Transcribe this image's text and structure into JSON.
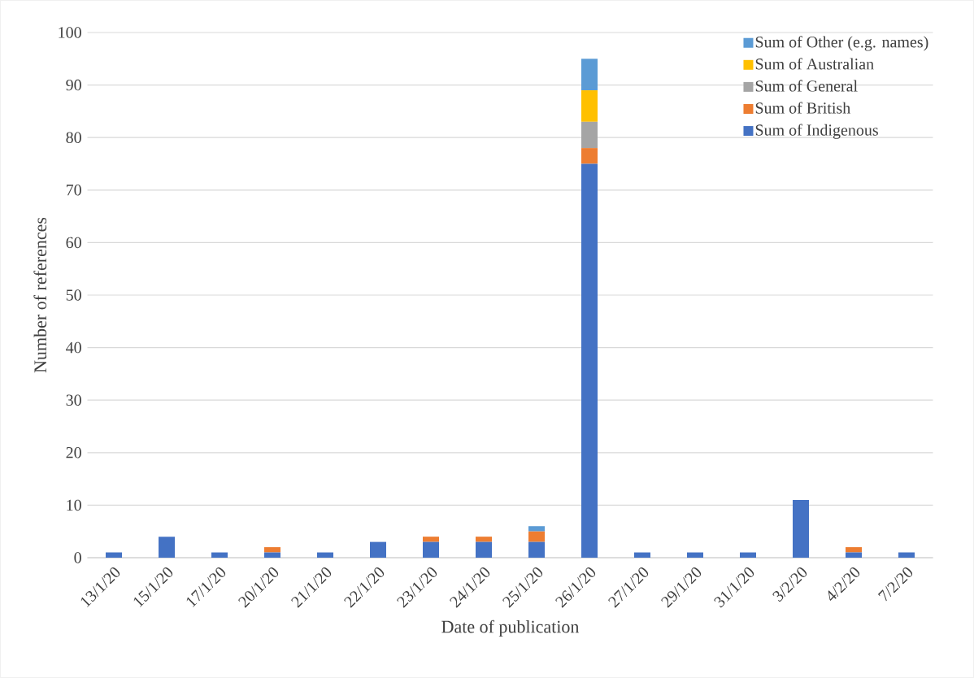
{
  "chart_data": {
    "type": "bar",
    "stacked": true,
    "xlabel": "Date of publication",
    "ylabel": "Number of references",
    "categories": [
      "13/1/20",
      "15/1/20",
      "17/1/20",
      "20/1/20",
      "21/1/20",
      "22/1/20",
      "23/1/20",
      "24/1/20",
      "25/1/20",
      "26/1/20",
      "27/1/20",
      "29/1/20",
      "31/1/20",
      "3/2/20",
      "4/2/20",
      "7/2/20"
    ],
    "series": [
      {
        "name": "Sum of Indigenous",
        "color": "#4472c4",
        "values": [
          1,
          4,
          1,
          1,
          1,
          3,
          3,
          3,
          3,
          75,
          1,
          1,
          1,
          11,
          1,
          1
        ]
      },
      {
        "name": "Sum of British",
        "color": "#ed7d31",
        "values": [
          0,
          0,
          0,
          1,
          0,
          0,
          1,
          1,
          2,
          3,
          0,
          0,
          0,
          0,
          1,
          0
        ]
      },
      {
        "name": "Sum of General",
        "color": "#a5a5a5",
        "values": [
          0,
          0,
          0,
          0,
          0,
          0,
          0,
          0,
          0,
          5,
          0,
          0,
          0,
          0,
          0,
          0
        ]
      },
      {
        "name": "Sum of Australian",
        "color": "#ffc000",
        "values": [
          0,
          0,
          0,
          0,
          0,
          0,
          0,
          0,
          0,
          6,
          0,
          0,
          0,
          0,
          0,
          0
        ]
      },
      {
        "name": "Sum of Other (e.g. names)",
        "color": "#5b9bd5",
        "values": [
          0,
          0,
          0,
          0,
          0,
          0,
          0,
          0,
          1,
          6,
          0,
          0,
          0,
          0,
          0,
          0
        ]
      }
    ],
    "ylim": [
      0,
      100
    ],
    "yticks": [
      0,
      10,
      20,
      30,
      40,
      50,
      60,
      70,
      80,
      90,
      100
    ],
    "grid": "y",
    "legend": "top right"
  }
}
